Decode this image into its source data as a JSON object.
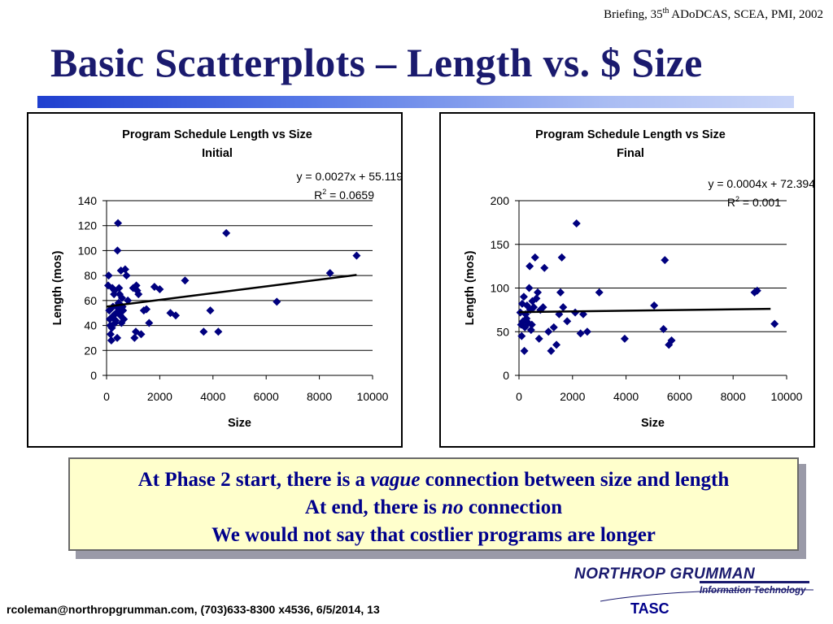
{
  "header": {
    "note_pre": "Briefing, 35",
    "note_sup": "th",
    "note_post": " ADoDCAS, SCEA, PMI, 2002"
  },
  "slide": {
    "title": "Basic Scatterplots – Length vs. $ Size"
  },
  "callout": {
    "line1_pre": "At Phase 2 start, there is a ",
    "line1_em": "vague",
    "line1_post": " connection between size and length",
    "line2_pre": "At end, there is ",
    "line2_em": "no",
    "line2_post": " connection",
    "line3": "We would not say that costlier programs are longer"
  },
  "logo": {
    "company": "NORTHROP GRUMMAN",
    "division": "Information Technology",
    "unit": "TASC"
  },
  "footer": {
    "text": "rcoleman@northropgrumman.com, (703)633-8300 x4536, 6/5/2014, 13"
  },
  "colors": {
    "title": "#1a1a6e",
    "marker": "#00007f",
    "callout_bg": "#ffffcc",
    "callout_text": "#00008b"
  },
  "chart_data": [
    {
      "type": "scatter",
      "title": "Program Schedule Length vs Size",
      "subtitle": "Initial",
      "xlabel": "Size",
      "ylabel": "Length (mos)",
      "xlim": [
        0,
        10000
      ],
      "ylim": [
        0,
        140
      ],
      "xticks": [
        0,
        2000,
        4000,
        6000,
        8000,
        10000
      ],
      "yticks": [
        0,
        20,
        40,
        60,
        80,
        100,
        120,
        140
      ],
      "grid": "horizontal",
      "trendline": {
        "slope": 0.0027,
        "intercept": 55.119,
        "x_range": [
          0,
          9400
        ]
      },
      "equation": "y = 0.0027x + 55.119",
      "r2_label": "R",
      "r2_sup": "2",
      "r2_value": " = 0.0659",
      "points": [
        [
          60,
          72
        ],
        [
          80,
          80
        ],
        [
          100,
          52
        ],
        [
          120,
          45
        ],
        [
          140,
          40
        ],
        [
          150,
          33
        ],
        [
          180,
          28
        ],
        [
          200,
          38
        ],
        [
          220,
          70
        ],
        [
          240,
          55
        ],
        [
          260,
          48
        ],
        [
          280,
          65
        ],
        [
          300,
          68
        ],
        [
          320,
          42
        ],
        [
          340,
          44
        ],
        [
          360,
          50
        ],
        [
          380,
          55
        ],
        [
          400,
          30
        ],
        [
          410,
          100
        ],
        [
          430,
          122
        ],
        [
          450,
          58
        ],
        [
          470,
          70
        ],
        [
          490,
          65
        ],
        [
          500,
          52
        ],
        [
          520,
          48
        ],
        [
          540,
          84
        ],
        [
          560,
          42
        ],
        [
          580,
          62
        ],
        [
          600,
          55
        ],
        [
          620,
          52
        ],
        [
          650,
          45
        ],
        [
          700,
          85
        ],
        [
          750,
          80
        ],
        [
          800,
          60
        ],
        [
          1000,
          70
        ],
        [
          1050,
          30
        ],
        [
          1100,
          35
        ],
        [
          1120,
          72
        ],
        [
          1150,
          68
        ],
        [
          1200,
          65
        ],
        [
          1300,
          33
        ],
        [
          1400,
          52
        ],
        [
          1500,
          53
        ],
        [
          1600,
          42
        ],
        [
          1800,
          71
        ],
        [
          2000,
          69
        ],
        [
          2400,
          50
        ],
        [
          2600,
          48
        ],
        [
          2950,
          76
        ],
        [
          3650,
          35
        ],
        [
          3900,
          52
        ],
        [
          4200,
          35
        ],
        [
          4500,
          114
        ],
        [
          6400,
          59
        ],
        [
          8400,
          82
        ],
        [
          9400,
          96
        ]
      ]
    },
    {
      "type": "scatter",
      "title": "Program Schedule Length  vs Size",
      "subtitle": "Final",
      "xlabel": "Size",
      "ylabel": "Length (mos)",
      "xlim": [
        0,
        10000
      ],
      "ylim": [
        0,
        200
      ],
      "xticks": [
        0,
        2000,
        4000,
        6000,
        8000,
        10000
      ],
      "yticks": [
        0,
        50,
        100,
        150,
        200
      ],
      "grid": "horizontal",
      "trendline": {
        "slope": 0.0004,
        "intercept": 72.394,
        "x_range": [
          0,
          9400
        ]
      },
      "equation": "y = 0.0004x + 72.394",
      "r2_label": "R",
      "r2_sup": "2",
      "r2_value": " = 0.001",
      "points": [
        [
          50,
          72
        ],
        [
          80,
          58
        ],
        [
          100,
          45
        ],
        [
          120,
          82
        ],
        [
          150,
          62
        ],
        [
          180,
          90
        ],
        [
          200,
          28
        ],
        [
          220,
          55
        ],
        [
          250,
          70
        ],
        [
          280,
          65
        ],
        [
          300,
          80
        ],
        [
          350,
          60
        ],
        [
          380,
          100
        ],
        [
          400,
          125
        ],
        [
          420,
          75
        ],
        [
          450,
          52
        ],
        [
          480,
          58
        ],
        [
          500,
          85
        ],
        [
          550,
          78
        ],
        [
          600,
          135
        ],
        [
          650,
          88
        ],
        [
          700,
          95
        ],
        [
          750,
          42
        ],
        [
          800,
          75
        ],
        [
          900,
          78
        ],
        [
          950,
          123
        ],
        [
          1100,
          50
        ],
        [
          1200,
          28
        ],
        [
          1300,
          55
        ],
        [
          1400,
          35
        ],
        [
          1500,
          70
        ],
        [
          1550,
          95
        ],
        [
          1600,
          135
        ],
        [
          1650,
          78
        ],
        [
          1800,
          62
        ],
        [
          2100,
          72
        ],
        [
          2150,
          174
        ],
        [
          2300,
          48
        ],
        [
          2400,
          70
        ],
        [
          2550,
          50
        ],
        [
          3000,
          95
        ],
        [
          3950,
          42
        ],
        [
          5050,
          80
        ],
        [
          5400,
          53
        ],
        [
          5450,
          132
        ],
        [
          5600,
          35
        ],
        [
          5700,
          40
        ],
        [
          8800,
          95
        ],
        [
          8900,
          97
        ],
        [
          9550,
          59
        ]
      ]
    }
  ]
}
